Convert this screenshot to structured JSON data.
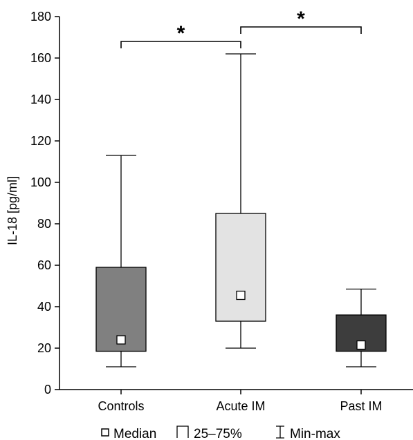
{
  "chart_data": {
    "type": "boxplot",
    "ylabel": "IL-18 [pg/ml]",
    "ylim": [
      0,
      180
    ],
    "yticks": [
      0,
      20,
      40,
      60,
      80,
      100,
      120,
      140,
      160,
      180
    ],
    "yticks_labels": [
      "0",
      "20",
      "40",
      "60",
      "80",
      "100",
      "120",
      "140",
      "160",
      "180"
    ],
    "categories": [
      "Controls",
      "Acute IM",
      "Past IM"
    ],
    "series": [
      {
        "min": 11,
        "q1": 18.5,
        "median": 24,
        "q3": 59,
        "max": 113,
        "color": "#808080"
      },
      {
        "min": 20,
        "q1": 33,
        "median": 45.5,
        "q3": 85,
        "max": 162,
        "color": "#e3e3e3"
      },
      {
        "min": 11,
        "q1": 18.5,
        "median": 21.5,
        "q3": 36,
        "max": 48.5,
        "color": "#3d3d3d"
      }
    ],
    "significance": [
      {
        "from": 0,
        "to": 1,
        "y": 168,
        "label": "*"
      },
      {
        "from": 1,
        "to": 2,
        "y": 175,
        "label": "*"
      }
    ],
    "legend": {
      "position": "bottom",
      "items": [
        {
          "symbol": "median-marker",
          "label": "Median"
        },
        {
          "symbol": "box-marker",
          "label": "25–75%"
        },
        {
          "symbol": "whisker-marker",
          "label": "Min-max"
        }
      ]
    }
  }
}
